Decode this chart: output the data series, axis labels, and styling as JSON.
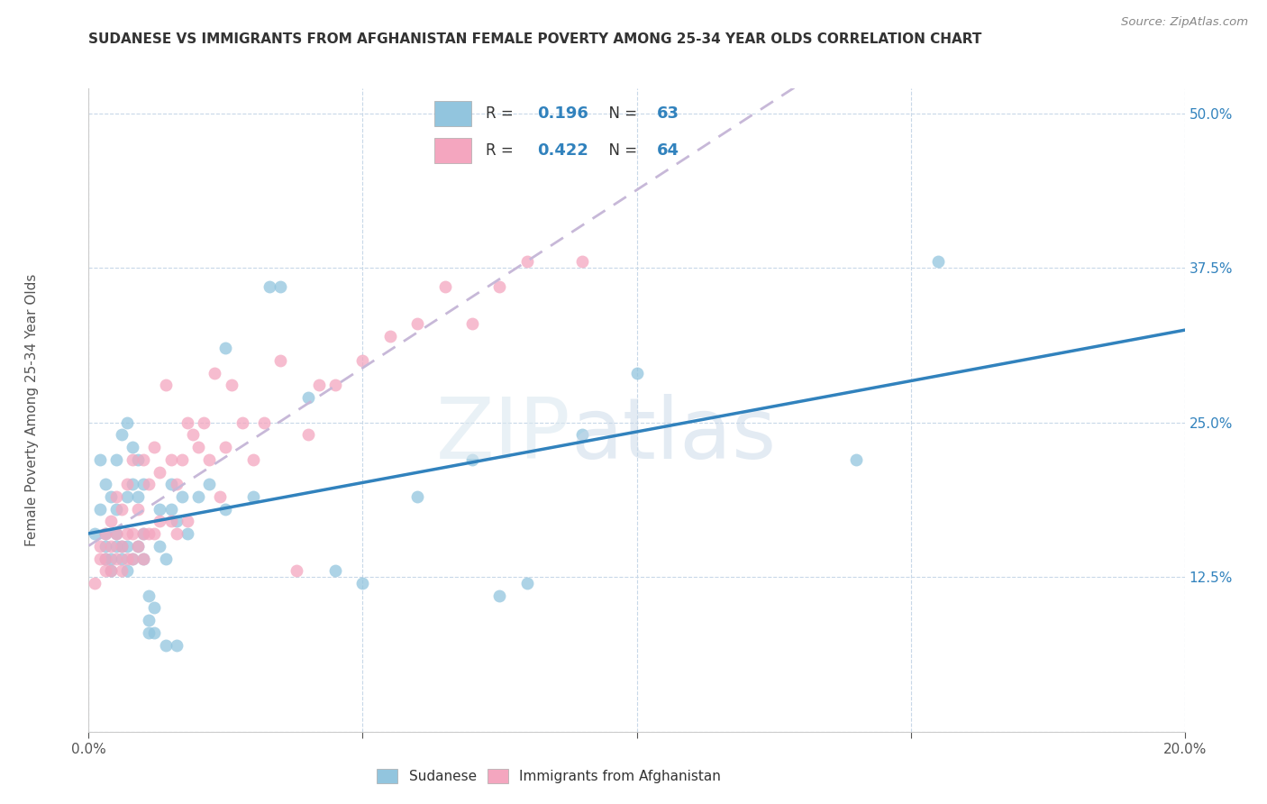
{
  "title": "SUDANESE VS IMMIGRANTS FROM AFGHANISTAN FEMALE POVERTY AMONG 25-34 YEAR OLDS CORRELATION CHART",
  "source": "Source: ZipAtlas.com",
  "ylabel": "Female Poverty Among 25-34 Year Olds",
  "legend_label1": "Sudanese",
  "legend_label2": "Immigrants from Afghanistan",
  "R1": "0.196",
  "N1": "63",
  "R2": "0.422",
  "N2": "64",
  "color1": "#92c5de",
  "color2": "#f4a6bf",
  "line_color1": "#3182bd",
  "line_color2": "#de77ae",
  "trendline_dashed_color": "#c7b8d8",
  "x_min": 0.0,
  "x_max": 0.2,
  "y_min": 0.0,
  "y_max": 0.52,
  "sudanese_x": [
    0.001,
    0.002,
    0.002,
    0.003,
    0.003,
    0.003,
    0.003,
    0.004,
    0.004,
    0.004,
    0.005,
    0.005,
    0.005,
    0.005,
    0.006,
    0.006,
    0.006,
    0.007,
    0.007,
    0.007,
    0.007,
    0.008,
    0.008,
    0.008,
    0.009,
    0.009,
    0.009,
    0.01,
    0.01,
    0.01,
    0.011,
    0.011,
    0.011,
    0.012,
    0.012,
    0.013,
    0.013,
    0.014,
    0.014,
    0.015,
    0.015,
    0.016,
    0.016,
    0.017,
    0.018,
    0.02,
    0.022,
    0.025,
    0.025,
    0.03,
    0.033,
    0.035,
    0.04,
    0.045,
    0.05,
    0.06,
    0.07,
    0.075,
    0.08,
    0.09,
    0.1,
    0.14,
    0.155
  ],
  "sudanese_y": [
    0.16,
    0.18,
    0.22,
    0.14,
    0.15,
    0.16,
    0.2,
    0.13,
    0.14,
    0.19,
    0.15,
    0.16,
    0.18,
    0.22,
    0.14,
    0.15,
    0.24,
    0.13,
    0.15,
    0.19,
    0.25,
    0.14,
    0.2,
    0.23,
    0.15,
    0.19,
    0.22,
    0.14,
    0.16,
    0.2,
    0.08,
    0.09,
    0.11,
    0.08,
    0.1,
    0.15,
    0.18,
    0.07,
    0.14,
    0.18,
    0.2,
    0.07,
    0.17,
    0.19,
    0.16,
    0.19,
    0.2,
    0.18,
    0.31,
    0.19,
    0.36,
    0.36,
    0.27,
    0.13,
    0.12,
    0.19,
    0.22,
    0.11,
    0.12,
    0.24,
    0.29,
    0.22,
    0.38
  ],
  "afghan_x": [
    0.001,
    0.002,
    0.002,
    0.003,
    0.003,
    0.003,
    0.004,
    0.004,
    0.004,
    0.005,
    0.005,
    0.005,
    0.006,
    0.006,
    0.006,
    0.007,
    0.007,
    0.007,
    0.008,
    0.008,
    0.008,
    0.009,
    0.009,
    0.01,
    0.01,
    0.01,
    0.011,
    0.011,
    0.012,
    0.012,
    0.013,
    0.013,
    0.014,
    0.015,
    0.015,
    0.016,
    0.016,
    0.017,
    0.018,
    0.018,
    0.019,
    0.02,
    0.021,
    0.022,
    0.023,
    0.024,
    0.025,
    0.026,
    0.028,
    0.03,
    0.032,
    0.035,
    0.038,
    0.04,
    0.042,
    0.045,
    0.05,
    0.055,
    0.06,
    0.065,
    0.07,
    0.075,
    0.08,
    0.09
  ],
  "afghan_y": [
    0.12,
    0.14,
    0.15,
    0.13,
    0.14,
    0.16,
    0.13,
    0.15,
    0.17,
    0.14,
    0.16,
    0.19,
    0.13,
    0.15,
    0.18,
    0.14,
    0.16,
    0.2,
    0.14,
    0.16,
    0.22,
    0.15,
    0.18,
    0.14,
    0.16,
    0.22,
    0.16,
    0.2,
    0.16,
    0.23,
    0.17,
    0.21,
    0.28,
    0.17,
    0.22,
    0.16,
    0.2,
    0.22,
    0.17,
    0.25,
    0.24,
    0.23,
    0.25,
    0.22,
    0.29,
    0.19,
    0.23,
    0.28,
    0.25,
    0.22,
    0.25,
    0.3,
    0.13,
    0.24,
    0.28,
    0.28,
    0.3,
    0.32,
    0.33,
    0.36,
    0.33,
    0.36,
    0.38,
    0.38
  ]
}
